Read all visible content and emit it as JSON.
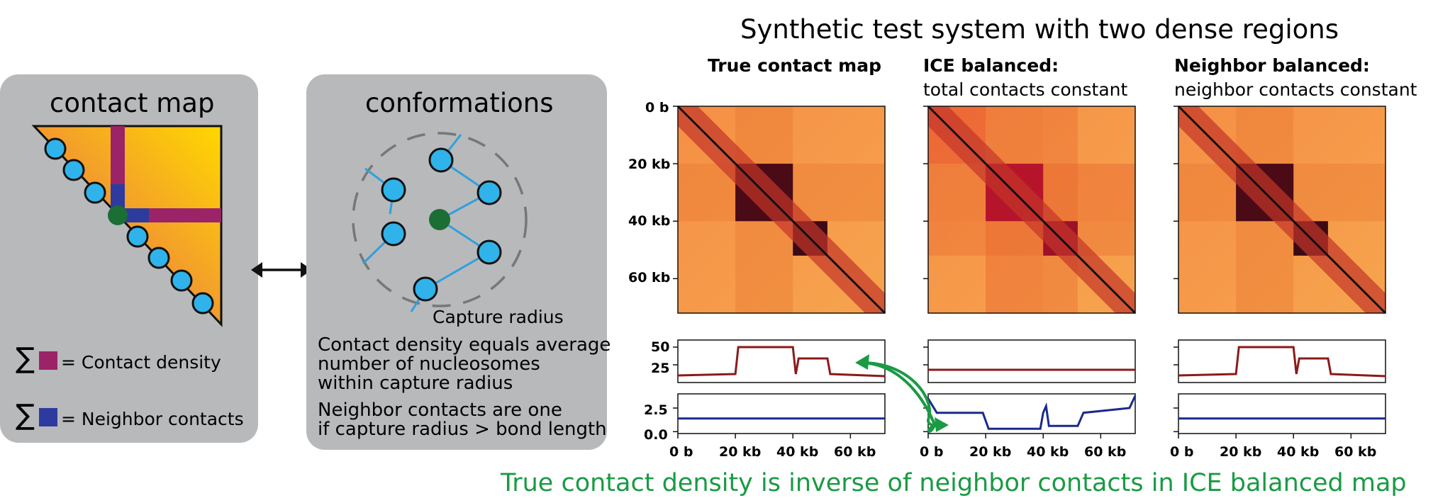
{
  "figure": {
    "title": "Synthetic test system with two dense regions",
    "bottom_caption": "True contact density is inverse of neighbor contacts in ICE balanced map",
    "caption_color": "#1a9a44"
  },
  "left_panel": {
    "title": "contact map",
    "legend": [
      {
        "symbol": "∑",
        "swatch_color": "#9b2468",
        "label": "= Contact density"
      },
      {
        "symbol": "∑",
        "swatch_color": "#2e3b9e",
        "label": "= Neighbor contacts"
      }
    ]
  },
  "middle_panel": {
    "title": "conformations",
    "capture_radius_label": "Capture radius",
    "text1": [
      "Contact density equals average",
      "number of nucleosomes",
      "within capture radius"
    ],
    "text2": [
      "Neighbor contacts are one",
      "if capture radius > bond length"
    ]
  },
  "heatmaps": [
    {
      "title_bold": "True contact map",
      "subtitle": ""
    },
    {
      "title_bold": "ICE balanced:",
      "subtitle": "total contacts constant"
    },
    {
      "title_bold": "Neighbor balanced:",
      "subtitle": "neighbor contacts constant"
    }
  ],
  "axes": {
    "y_ticks": [
      "0 b",
      "20 kb",
      "40 kb",
      "60 kb"
    ],
    "x_ticks": [
      "0 b",
      "20 kb",
      "40 kb",
      "60 kb"
    ],
    "density_ticks": [
      "50",
      "25"
    ],
    "neighbor_ticks": [
      "2.5",
      "0.0"
    ]
  },
  "chart_data": {
    "type": "line",
    "x_unit": "kb",
    "x_range": [
      0,
      72
    ],
    "dense_regions_kb": [
      [
        20,
        40
      ],
      [
        40,
        52
      ]
    ],
    "panels": [
      {
        "name": "True contact map",
        "density": {
          "ylim": [
            0,
            60
          ],
          "x": [
            0,
            20,
            21,
            40,
            41,
            42,
            52,
            53,
            72
          ],
          "y": [
            10,
            12,
            50,
            50,
            12,
            34,
            34,
            12,
            9
          ]
        },
        "neighbor": {
          "ylim": [
            -0.2,
            4.0
          ],
          "x": [
            0,
            72
          ],
          "y": [
            1.4,
            1.4
          ]
        }
      },
      {
        "name": "ICE balanced",
        "density": {
          "ylim": [
            0,
            60
          ],
          "x": [
            0,
            72
          ],
          "y": [
            18,
            18
          ]
        },
        "neighbor": {
          "ylim": [
            -0.2,
            4.0
          ],
          "x": [
            0,
            3,
            19,
            21,
            39,
            40,
            41,
            42,
            52,
            54,
            70,
            72
          ],
          "y": [
            3.5,
            2.0,
            2.0,
            0.3,
            0.3,
            2.0,
            2.7,
            0.6,
            0.6,
            2.0,
            2.5,
            3.8
          ]
        }
      },
      {
        "name": "Neighbor balanced",
        "density": {
          "ylim": [
            0,
            60
          ],
          "x": [
            0,
            20,
            21,
            40,
            41,
            42,
            52,
            53,
            72
          ],
          "y": [
            10,
            12,
            50,
            50,
            12,
            34,
            34,
            12,
            9
          ]
        },
        "neighbor": {
          "ylim": [
            -0.2,
            4.0
          ],
          "x": [
            0,
            72
          ],
          "y": [
            1.4,
            1.4
          ]
        }
      }
    ],
    "density_color": "#8b1a1a",
    "neighbor_color": "#1a2a8c"
  }
}
